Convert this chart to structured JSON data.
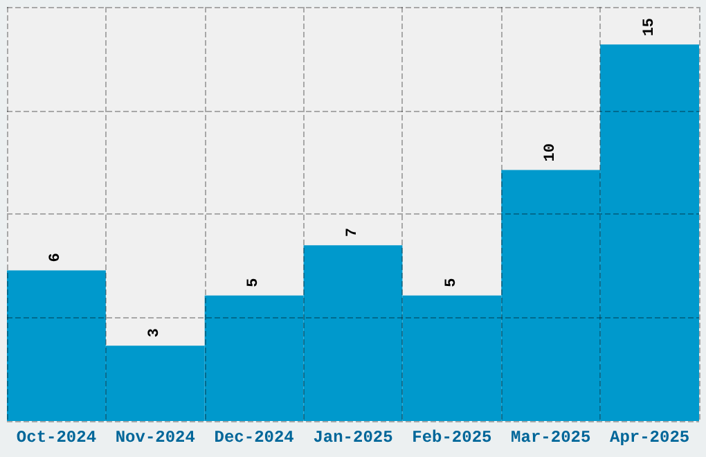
{
  "chart_data": {
    "type": "bar",
    "categories": [
      "Oct-2024",
      "Nov-2024",
      "Dec-2024",
      "Jan-2025",
      "Feb-2025",
      "Mar-2025",
      "Apr-2025"
    ],
    "values": [
      6,
      3,
      5,
      7,
      5,
      10,
      15
    ],
    "color": "#0099cc",
    "ylim": [
      0,
      16.5
    ],
    "yticks": [
      {
        "value": 0,
        "label": null
      },
      {
        "value": 4.125,
        "label": null
      },
      {
        "value": 8.25,
        "label": null
      },
      {
        "value": 12.375,
        "label": null
      },
      {
        "value": 16.5,
        "label": null
      }
    ],
    "tick_labels": "x",
    "grid": true,
    "data_labels": true
  }
}
